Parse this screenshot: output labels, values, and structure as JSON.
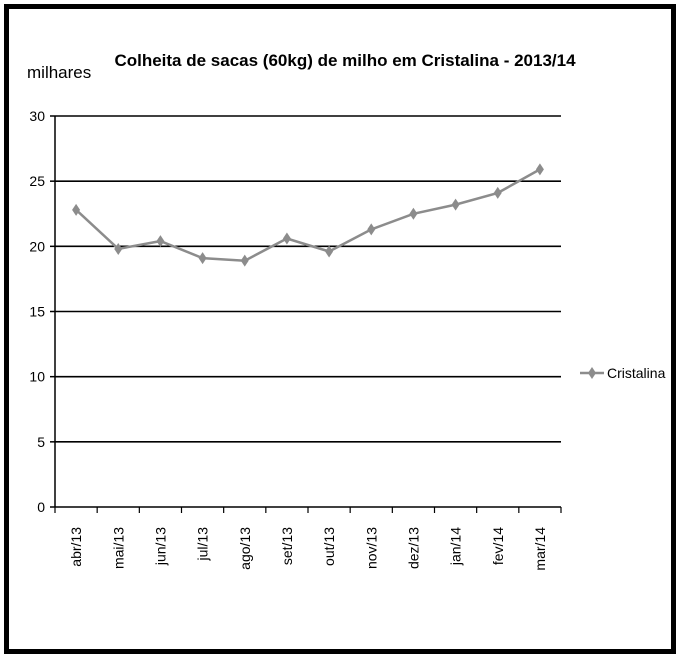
{
  "chart_data": {
    "type": "line",
    "title": "Colheita de sacas (60kg) de milho em Cristalina - 2013/14",
    "unit_label": "milhares",
    "xlabel": "",
    "ylabel": "",
    "ylim": [
      0,
      30
    ],
    "yticks": [
      0,
      5,
      10,
      15,
      20,
      25,
      30
    ],
    "grid": true,
    "legend_position": "right",
    "categories": [
      "abr/13",
      "mai/13",
      "jun/13",
      "jul/13",
      "ago/13",
      "set/13",
      "out/13",
      "nov/13",
      "dez/13",
      "jan/14",
      "fev/14",
      "mar/14"
    ],
    "series": [
      {
        "name": "Cristalina",
        "color": "#8c8c8c",
        "values": [
          22.8,
          19.8,
          20.4,
          19.1,
          18.9,
          20.6,
          19.6,
          21.3,
          22.5,
          23.2,
          24.1,
          25.9
        ]
      }
    ]
  }
}
